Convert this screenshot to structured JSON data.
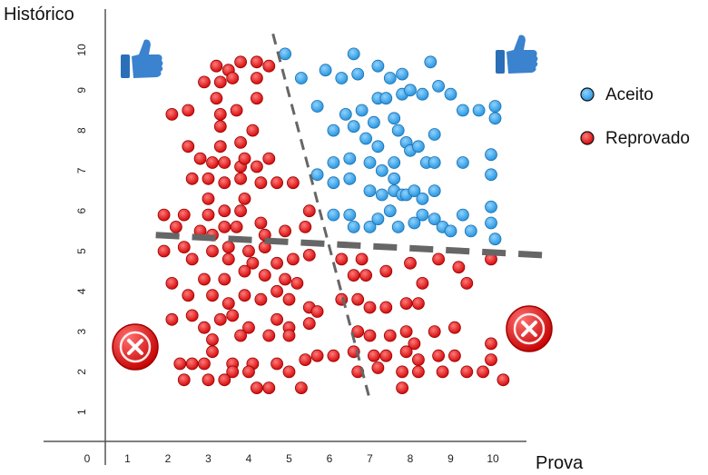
{
  "chart_data": {
    "type": "scatter",
    "xlabel": "Prova",
    "ylabel": "Histórico",
    "x_ticks": [
      "0",
      "1",
      "2",
      "3",
      "4",
      "5",
      "6",
      "7",
      "8",
      "9",
      "10"
    ],
    "y_ticks": [
      "1",
      "2",
      "3",
      "4",
      "5",
      "6",
      "7",
      "8",
      "9",
      "10"
    ],
    "xlim": [
      0,
      11.5
    ],
    "ylim": [
      0,
      10.5
    ],
    "legend_position": "right",
    "colors": {
      "aceito": "#2b9fe6",
      "reprovado": "#e01414",
      "boundary": "#666666"
    },
    "icons": {
      "top_left": "thumbs-up-icon",
      "top_right": "thumbs-up-icon",
      "bottom_left": "reject-x-icon",
      "bottom_right": "reject-x-icon"
    },
    "series": [
      {
        "name": "Aceito",
        "points": [
          [
            4.9,
            9.9
          ],
          [
            5.3,
            9.3
          ],
          [
            5.9,
            9.5
          ],
          [
            6.3,
            9.3
          ],
          [
            6.6,
            9.9
          ],
          [
            6.7,
            9.4
          ],
          [
            7.2,
            9.6
          ],
          [
            7.2,
            8.8
          ],
          [
            7.4,
            8.8
          ],
          [
            7.5,
            9.3
          ],
          [
            7.8,
            9.4
          ],
          [
            7.8,
            8.9
          ],
          [
            8.0,
            9.0
          ],
          [
            8.3,
            8.9
          ],
          [
            8.5,
            9.7
          ],
          [
            8.7,
            9.1
          ],
          [
            9.0,
            8.9
          ],
          [
            9.3,
            8.5
          ],
          [
            9.7,
            8.5
          ],
          [
            10.1,
            8.6
          ],
          [
            10.1,
            8.3
          ],
          [
            5.7,
            8.6
          ],
          [
            6.1,
            8.0
          ],
          [
            6.4,
            8.4
          ],
          [
            6.6,
            8.1
          ],
          [
            6.8,
            8.5
          ],
          [
            6.9,
            7.8
          ],
          [
            7.1,
            8.2
          ],
          [
            7.2,
            7.6
          ],
          [
            7.6,
            8.3
          ],
          [
            7.7,
            8.0
          ],
          [
            7.9,
            7.7
          ],
          [
            8.0,
            7.5
          ],
          [
            8.2,
            7.6
          ],
          [
            8.4,
            7.2
          ],
          [
            8.6,
            7.2
          ],
          [
            8.6,
            7.9
          ],
          [
            9.3,
            7.2
          ],
          [
            10.0,
            7.4
          ],
          [
            10.0,
            6.9
          ],
          [
            5.7,
            6.9
          ],
          [
            6.1,
            7.2
          ],
          [
            6.5,
            7.3
          ],
          [
            7.0,
            7.2
          ],
          [
            7.3,
            7.0
          ],
          [
            7.6,
            7.2
          ],
          [
            7.6,
            6.8
          ],
          [
            6.1,
            6.7
          ],
          [
            6.5,
            6.8
          ],
          [
            7.0,
            6.5
          ],
          [
            7.3,
            6.4
          ],
          [
            7.6,
            6.5
          ],
          [
            7.8,
            6.4
          ],
          [
            7.9,
            6.4
          ],
          [
            8.1,
            6.5
          ],
          [
            8.3,
            6.3
          ],
          [
            8.6,
            6.5
          ],
          [
            8.6,
            5.8
          ],
          [
            8.3,
            5.9
          ],
          [
            8.8,
            5.6
          ],
          [
            9.3,
            5.9
          ],
          [
            9.5,
            5.5
          ],
          [
            10.0,
            6.1
          ],
          [
            10.0,
            5.7
          ],
          [
            10.1,
            5.3
          ],
          [
            6.1,
            5.9
          ],
          [
            6.5,
            5.9
          ],
          [
            6.6,
            5.6
          ],
          [
            7.0,
            5.6
          ],
          [
            7.2,
            5.8
          ],
          [
            7.5,
            6.0
          ],
          [
            7.7,
            5.6
          ],
          [
            8.1,
            5.7
          ],
          [
            9.0,
            5.5
          ]
        ]
      },
      {
        "name": "Reprovado",
        "points": [
          [
            3.2,
            9.6
          ],
          [
            3.5,
            9.5
          ],
          [
            3.8,
            9.7
          ],
          [
            4.2,
            9.7
          ],
          [
            4.5,
            9.6
          ],
          [
            2.9,
            9.2
          ],
          [
            3.3,
            9.2
          ],
          [
            3.6,
            9.3
          ],
          [
            4.2,
            9.3
          ],
          [
            3.2,
            8.8
          ],
          [
            4.2,
            8.8
          ],
          [
            2.1,
            8.4
          ],
          [
            2.5,
            8.5
          ],
          [
            3.3,
            8.4
          ],
          [
            3.7,
            8.5
          ],
          [
            3.3,
            8.1
          ],
          [
            4.1,
            8.0
          ],
          [
            2.5,
            7.6
          ],
          [
            3.3,
            7.6
          ],
          [
            3.8,
            7.7
          ],
          [
            2.8,
            7.3
          ],
          [
            3.1,
            7.2
          ],
          [
            3.4,
            7.2
          ],
          [
            3.8,
            7.1
          ],
          [
            3.9,
            7.3
          ],
          [
            4.2,
            7.1
          ],
          [
            4.5,
            7.3
          ],
          [
            2.6,
            6.8
          ],
          [
            3.0,
            6.8
          ],
          [
            3.4,
            6.7
          ],
          [
            3.8,
            6.8
          ],
          [
            4.3,
            6.7
          ],
          [
            4.7,
            6.7
          ],
          [
            5.1,
            6.7
          ],
          [
            3.0,
            6.3
          ],
          [
            3.9,
            6.3
          ],
          [
            1.9,
            5.9
          ],
          [
            2.4,
            5.9
          ],
          [
            3.0,
            5.9
          ],
          [
            3.4,
            6.0
          ],
          [
            3.8,
            6.0
          ],
          [
            5.5,
            6.0
          ],
          [
            2.2,
            5.6
          ],
          [
            2.8,
            5.5
          ],
          [
            3.1,
            5.4
          ],
          [
            3.4,
            5.6
          ],
          [
            3.7,
            5.6
          ],
          [
            4.3,
            5.7
          ],
          [
            4.4,
            5.4
          ],
          [
            4.9,
            5.5
          ],
          [
            5.4,
            5.6
          ],
          [
            1.9,
            5.0
          ],
          [
            2.4,
            5.1
          ],
          [
            3.1,
            5.0
          ],
          [
            3.5,
            5.1
          ],
          [
            4.0,
            5.0
          ],
          [
            4.4,
            5.1
          ],
          [
            2.6,
            4.8
          ],
          [
            3.5,
            4.8
          ],
          [
            4.1,
            4.7
          ],
          [
            4.7,
            4.7
          ],
          [
            5.1,
            4.8
          ],
          [
            5.5,
            4.9
          ],
          [
            6.3,
            4.8
          ],
          [
            6.8,
            4.8
          ],
          [
            2.1,
            4.2
          ],
          [
            2.9,
            4.3
          ],
          [
            3.4,
            4.3
          ],
          [
            3.9,
            4.5
          ],
          [
            4.4,
            4.4
          ],
          [
            4.9,
            4.3
          ],
          [
            5.2,
            4.2
          ],
          [
            6.6,
            4.4
          ],
          [
            6.9,
            4.4
          ],
          [
            7.4,
            4.5
          ],
          [
            8.0,
            4.7
          ],
          [
            8.3,
            4.2
          ],
          [
            8.7,
            4.8
          ],
          [
            9.2,
            4.6
          ],
          [
            10.0,
            4.8
          ],
          [
            2.5,
            3.9
          ],
          [
            3.1,
            3.9
          ],
          [
            3.5,
            3.7
          ],
          [
            3.9,
            3.9
          ],
          [
            4.3,
            3.8
          ],
          [
            4.7,
            4.0
          ],
          [
            5.0,
            3.8
          ],
          [
            5.5,
            3.6
          ],
          [
            5.7,
            3.5
          ],
          [
            6.3,
            3.8
          ],
          [
            6.7,
            3.8
          ],
          [
            7.0,
            3.6
          ],
          [
            7.4,
            3.6
          ],
          [
            7.9,
            3.7
          ],
          [
            8.2,
            3.7
          ],
          [
            9.4,
            4.2
          ],
          [
            2.1,
            3.3
          ],
          [
            2.6,
            3.4
          ],
          [
            2.9,
            3.1
          ],
          [
            3.3,
            3.3
          ],
          [
            3.6,
            3.4
          ],
          [
            4.0,
            3.1
          ],
          [
            4.7,
            3.3
          ],
          [
            5.0,
            3.1
          ],
          [
            5.5,
            3.2
          ],
          [
            3.1,
            2.8
          ],
          [
            3.8,
            2.9
          ],
          [
            4.5,
            2.9
          ],
          [
            5.0,
            2.9
          ],
          [
            6.7,
            3.0
          ],
          [
            7.0,
            2.9
          ],
          [
            7.5,
            2.9
          ],
          [
            7.9,
            3.0
          ],
          [
            8.1,
            2.7
          ],
          [
            8.6,
            3.0
          ],
          [
            9.1,
            3.1
          ],
          [
            10.0,
            2.7
          ],
          [
            2.3,
            2.2
          ],
          [
            2.6,
            2.2
          ],
          [
            3.1,
            2.5
          ],
          [
            3.6,
            2.2
          ],
          [
            4.1,
            2.2
          ],
          [
            4.7,
            2.2
          ],
          [
            5.0,
            2.0
          ],
          [
            5.4,
            2.3
          ],
          [
            5.7,
            2.4
          ],
          [
            6.1,
            2.4
          ],
          [
            6.6,
            2.5
          ],
          [
            7.1,
            2.4
          ],
          [
            7.4,
            2.4
          ],
          [
            7.9,
            2.5
          ],
          [
            8.2,
            2.3
          ],
          [
            8.7,
            2.4
          ],
          [
            9.1,
            2.4
          ],
          [
            9.4,
            2.0
          ],
          [
            9.8,
            2.0
          ],
          [
            10.0,
            2.3
          ],
          [
            10.3,
            1.8
          ],
          [
            2.4,
            1.8
          ],
          [
            3.0,
            1.8
          ],
          [
            3.6,
            2.0
          ],
          [
            4.0,
            2.0
          ],
          [
            4.5,
            1.6
          ],
          [
            4.2,
            1.6
          ],
          [
            5.3,
            1.6
          ],
          [
            6.7,
            2.0
          ],
          [
            7.2,
            2.1
          ],
          [
            7.8,
            2.0
          ],
          [
            8.2,
            2.0
          ],
          [
            8.8,
            2.0
          ],
          [
            7.8,
            1.6
          ],
          [
            3.4,
            1.8
          ],
          [
            2.9,
            2.2
          ]
        ]
      }
    ],
    "boundaries": [
      {
        "label": "",
        "from": [
          4.6,
          10.4
        ],
        "to": [
          7.0,
          1.3
        ]
      },
      {
        "label": "",
        "from": [
          1.7,
          5.4
        ],
        "to": [
          11.3,
          4.9
        ]
      }
    ]
  }
}
